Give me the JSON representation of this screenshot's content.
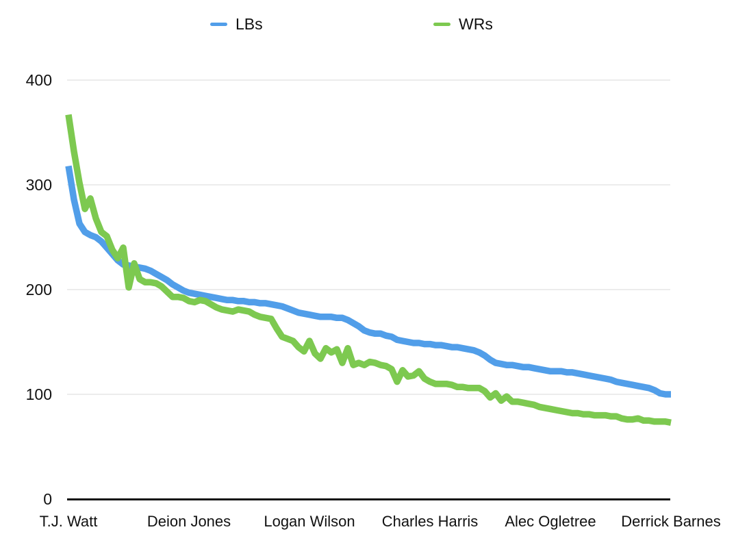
{
  "chart_data": {
    "type": "line",
    "title": "",
    "xlabel": "",
    "ylabel": "",
    "ylim": [
      0,
      400
    ],
    "y_ticks": [
      0,
      100,
      200,
      300,
      400
    ],
    "grid": "horizontal",
    "legend_position": "top",
    "x_tick_labels": [
      "T.J. Watt",
      "Deion Jones",
      "Logan Wilson",
      "Charles Harris",
      "Alec Ogletree",
      "Derrick Barnes"
    ],
    "x_tick_indices": [
      0,
      22,
      44,
      66,
      88,
      110
    ],
    "num_points": 111,
    "series": [
      {
        "name": "LBs",
        "color": "#519ee9",
        "values": [
          318,
          286,
          263,
          255,
          252,
          250,
          246,
          240,
          234,
          228,
          224,
          223,
          222,
          221,
          220,
          218,
          215,
          212,
          209,
          205,
          202,
          199,
          197,
          196,
          195,
          194,
          193,
          192,
          191,
          190,
          190,
          189,
          189,
          188,
          188,
          187,
          187,
          186,
          185,
          184,
          182,
          180,
          178,
          177,
          176,
          175,
          174,
          174,
          174,
          173,
          173,
          171,
          168,
          165,
          161,
          159,
          158,
          158,
          156,
          155,
          152,
          151,
          150,
          149,
          149,
          148,
          148,
          147,
          147,
          146,
          145,
          145,
          144,
          143,
          142,
          140,
          137,
          133,
          130,
          129,
          128,
          128,
          127,
          126,
          126,
          125,
          124,
          123,
          122,
          122,
          122,
          121,
          121,
          120,
          119,
          118,
          117,
          116,
          115,
          114,
          112,
          111,
          110,
          109,
          108,
          107,
          106,
          104,
          101,
          100,
          100
        ]
      },
      {
        "name": "WRs",
        "color": "#7dc950",
        "values": [
          367,
          332,
          302,
          277,
          287,
          268,
          255,
          251,
          238,
          230,
          240,
          202,
          225,
          210,
          207,
          207,
          206,
          203,
          198,
          193,
          193,
          192,
          189,
          188,
          190,
          189,
          186,
          183,
          181,
          180,
          179,
          181,
          180,
          179,
          176,
          174,
          173,
          172,
          163,
          155,
          153,
          151,
          145,
          141,
          151,
          139,
          134,
          144,
          140,
          143,
          130,
          144,
          128,
          130,
          128,
          131,
          130,
          128,
          127,
          124,
          112,
          123,
          117,
          118,
          122,
          115,
          112,
          110,
          110,
          110,
          109,
          107,
          107,
          106,
          106,
          106,
          103,
          97,
          101,
          94,
          98,
          93,
          93,
          92,
          91,
          90,
          88,
          87,
          86,
          85,
          84,
          83,
          82,
          82,
          81,
          81,
          80,
          80,
          80,
          79,
          79,
          77,
          76,
          76,
          77,
          75,
          75,
          74,
          74,
          74,
          73
        ]
      }
    ],
    "style": {
      "background": "#ffffff",
      "grid_color": "#d8d8d8",
      "axis_color": "#111111",
      "text_color": "#111111",
      "line_width": 9.5
    }
  },
  "legend": {
    "items": [
      {
        "label": "LBs"
      },
      {
        "label": "WRs"
      }
    ]
  }
}
